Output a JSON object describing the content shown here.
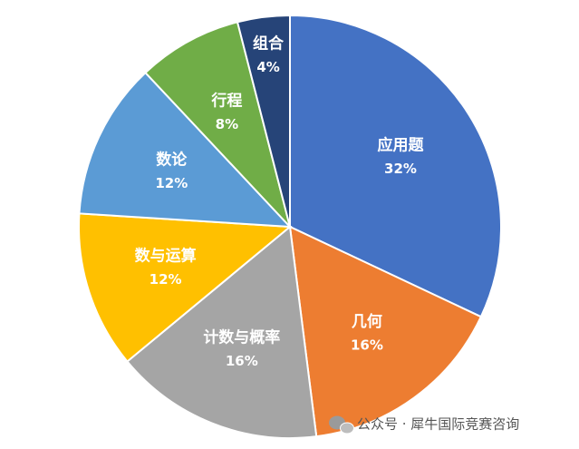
{
  "chart_data": {
    "type": "pie",
    "categories": [
      "应用题",
      "几何",
      "计数与概率",
      "数与运算",
      "数论",
      "行程",
      "组合"
    ],
    "values": [
      32,
      16,
      16,
      12,
      12,
      8,
      4
    ],
    "value_labels": [
      "32%",
      "16%",
      "16%",
      "12%",
      "12%",
      "8%",
      "4%"
    ],
    "colors": [
      "#4472c4",
      "#ed7d31",
      "#a5a5a5",
      "#ffc000",
      "#5b9bd5",
      "#70ad47",
      "#264478"
    ]
  },
  "watermark": "公众号 · 犀牛国际竞赛咨询"
}
